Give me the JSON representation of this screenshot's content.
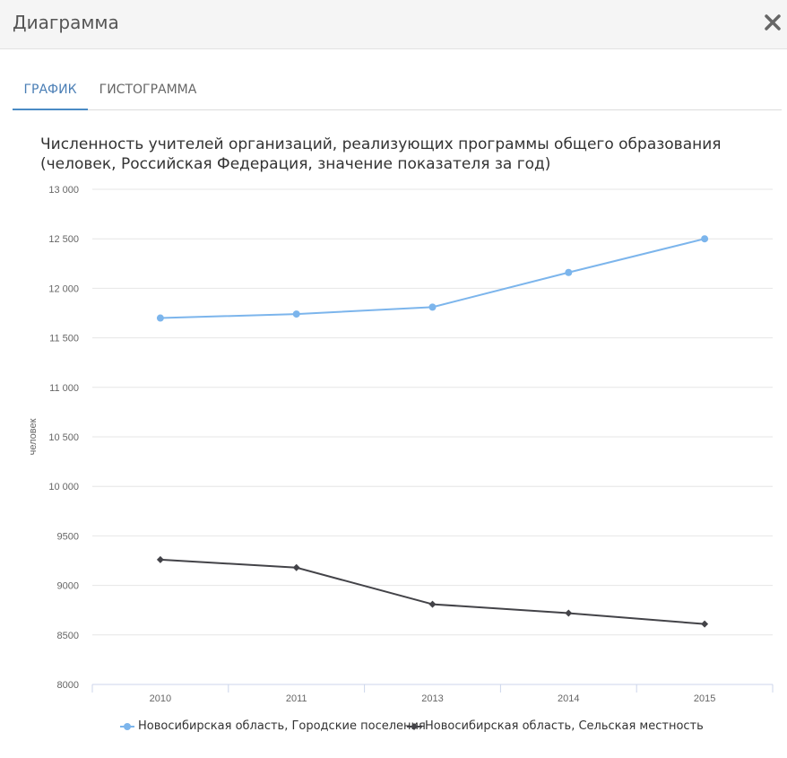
{
  "dialog": {
    "title": "Диаграмма"
  },
  "tabs": [
    {
      "label": "ГРАФИК",
      "active": true
    },
    {
      "label": "ГИСТОГРАММА",
      "active": false
    }
  ],
  "colors": {
    "series_urban": "#7cb5ec",
    "series_rural": "#434348",
    "tab_active": "#4a8bc5"
  },
  "chart_data": {
    "type": "line",
    "title": "Численность учителей организаций, реализующих программы общего образования (человек, Российская Федерация, значение показателя за год)",
    "ylabel": "человек",
    "xlabel": "",
    "categories": [
      "2010",
      "2011",
      "2013",
      "2014",
      "2015"
    ],
    "ylim": [
      8000,
      13000
    ],
    "yticks": [
      8000,
      8500,
      9000,
      9500,
      10000,
      10500,
      11000,
      11500,
      12000,
      12500,
      13000
    ],
    "ytick_labels": [
      "8000",
      "8500",
      "9000",
      "9500",
      "10 000",
      "10 500",
      "11 000",
      "11 500",
      "12 000",
      "12 500",
      "13 000"
    ],
    "grid": true,
    "legend_position": "bottom",
    "series": [
      {
        "name": "Новосибирская область, Городские поселения",
        "values": [
          11700,
          11740,
          11810,
          12160,
          12500
        ],
        "marker": "circle"
      },
      {
        "name": "Новосибирская область, Сельская местность",
        "values": [
          9260,
          9180,
          8810,
          8720,
          8610
        ],
        "marker": "diamond"
      }
    ]
  }
}
